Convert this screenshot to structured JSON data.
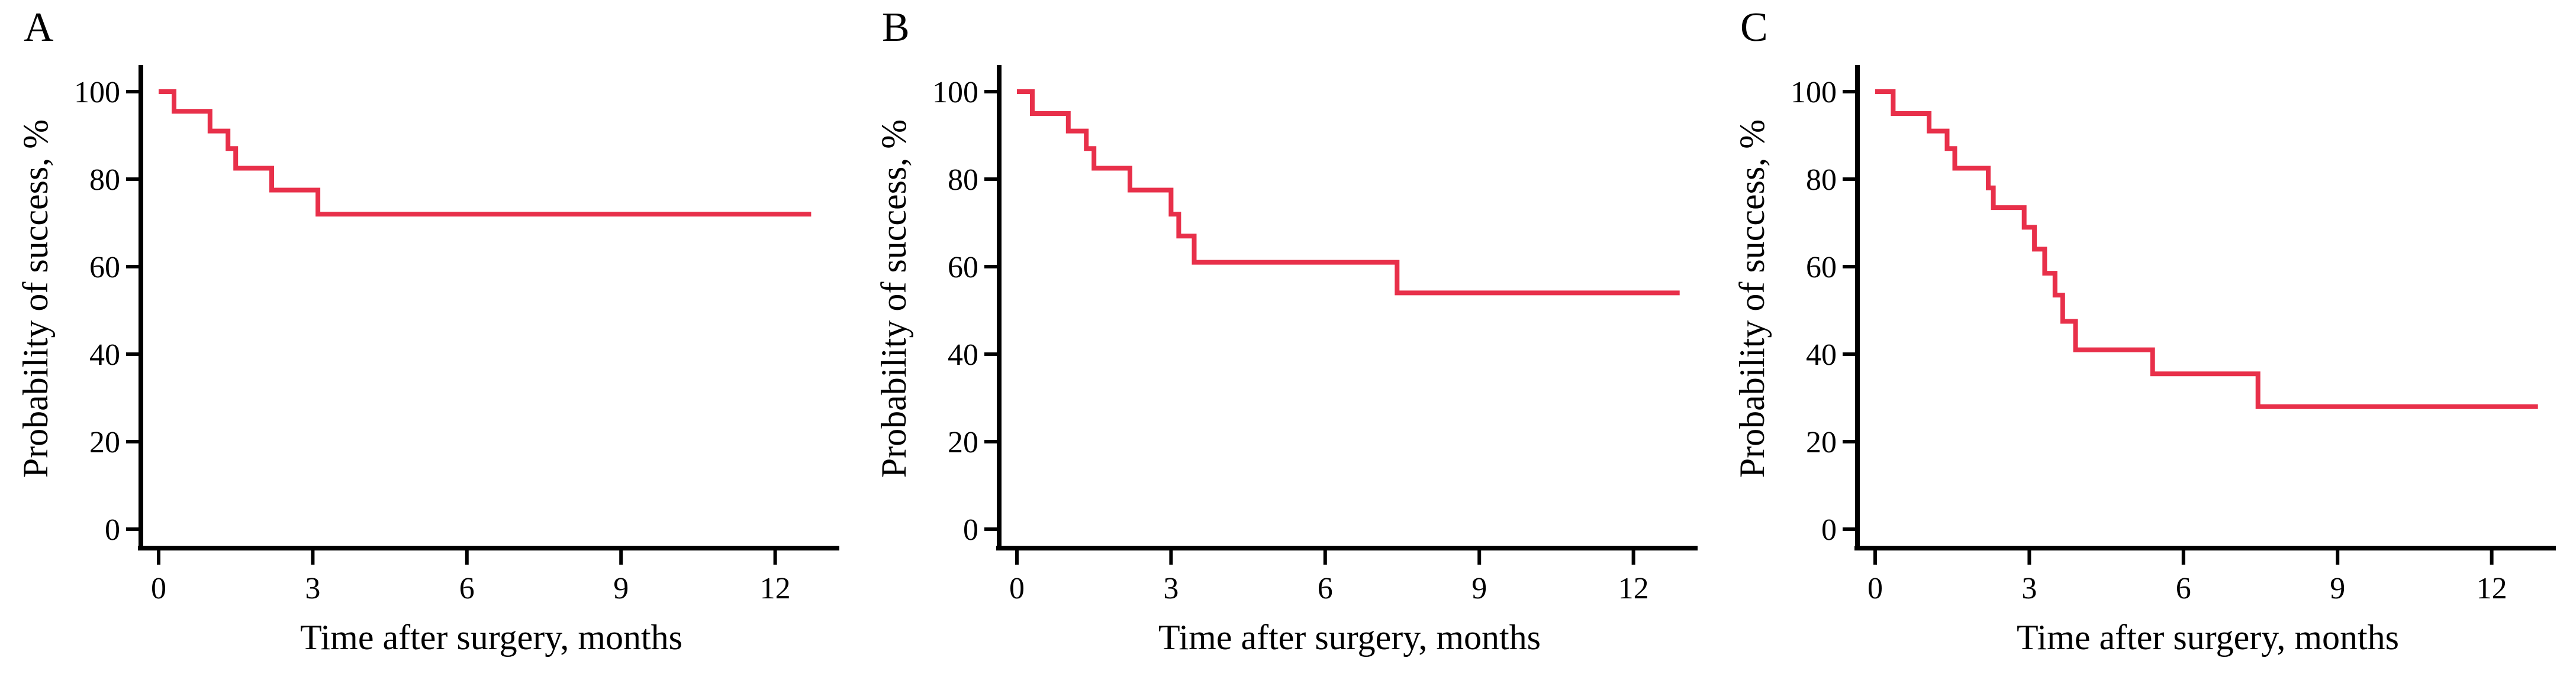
{
  "figure": {
    "background_color": "#ffffff",
    "axis_color": "#000000",
    "curve_color": "#e8304a",
    "xlabel": "Time after surgery, months",
    "ylabel": "Probability of success, %",
    "xticks": [
      0,
      3,
      6,
      9,
      12
    ],
    "yticks": [
      0,
      20,
      40,
      60,
      80,
      100
    ],
    "xlim": [
      0,
      13.2
    ],
    "ylim": [
      0,
      100
    ],
    "grid": false,
    "legend": "none"
  },
  "chart_data": [
    {
      "type": "line",
      "subtype": "kaplan-meier-step",
      "panel_label": "A",
      "xlabel": "Time after surgery, months",
      "ylabel": "Probability of success, %",
      "start": [
        0,
        100
      ],
      "drops": [
        [
          0.3,
          95.5
        ],
        [
          1.0,
          91
        ],
        [
          1.35,
          87
        ],
        [
          1.5,
          82.5
        ],
        [
          2.2,
          77.5
        ],
        [
          3.1,
          72
        ]
      ],
      "end_month": 12.7,
      "final_value": 72
    },
    {
      "type": "line",
      "subtype": "kaplan-meier-step",
      "panel_label": "B",
      "xlabel": "Time after surgery, months",
      "ylabel": "Probability of success, %",
      "start": [
        0,
        100
      ],
      "drops": [
        [
          0.3,
          95
        ],
        [
          1.0,
          91
        ],
        [
          1.35,
          87
        ],
        [
          1.5,
          82.5
        ],
        [
          2.2,
          77.5
        ],
        [
          3.0,
          72
        ],
        [
          3.15,
          67
        ],
        [
          3.45,
          61
        ],
        [
          7.4,
          54
        ]
      ],
      "end_month": 12.9,
      "final_value": 54
    },
    {
      "type": "line",
      "subtype": "kaplan-meier-step",
      "panel_label": "C",
      "xlabel": "Time after surgery, months",
      "ylabel": "Probability of success, %",
      "start": [
        0,
        100
      ],
      "drops": [
        [
          0.35,
          95
        ],
        [
          1.05,
          91
        ],
        [
          1.4,
          87
        ],
        [
          1.55,
          82.5
        ],
        [
          2.2,
          78
        ],
        [
          2.3,
          73.5
        ],
        [
          2.9,
          69
        ],
        [
          3.1,
          64
        ],
        [
          3.3,
          58.5
        ],
        [
          3.5,
          53.5
        ],
        [
          3.65,
          47.5
        ],
        [
          3.9,
          41
        ],
        [
          5.4,
          35.5
        ],
        [
          7.45,
          28
        ]
      ],
      "end_month": 12.9,
      "final_value": 28
    }
  ]
}
